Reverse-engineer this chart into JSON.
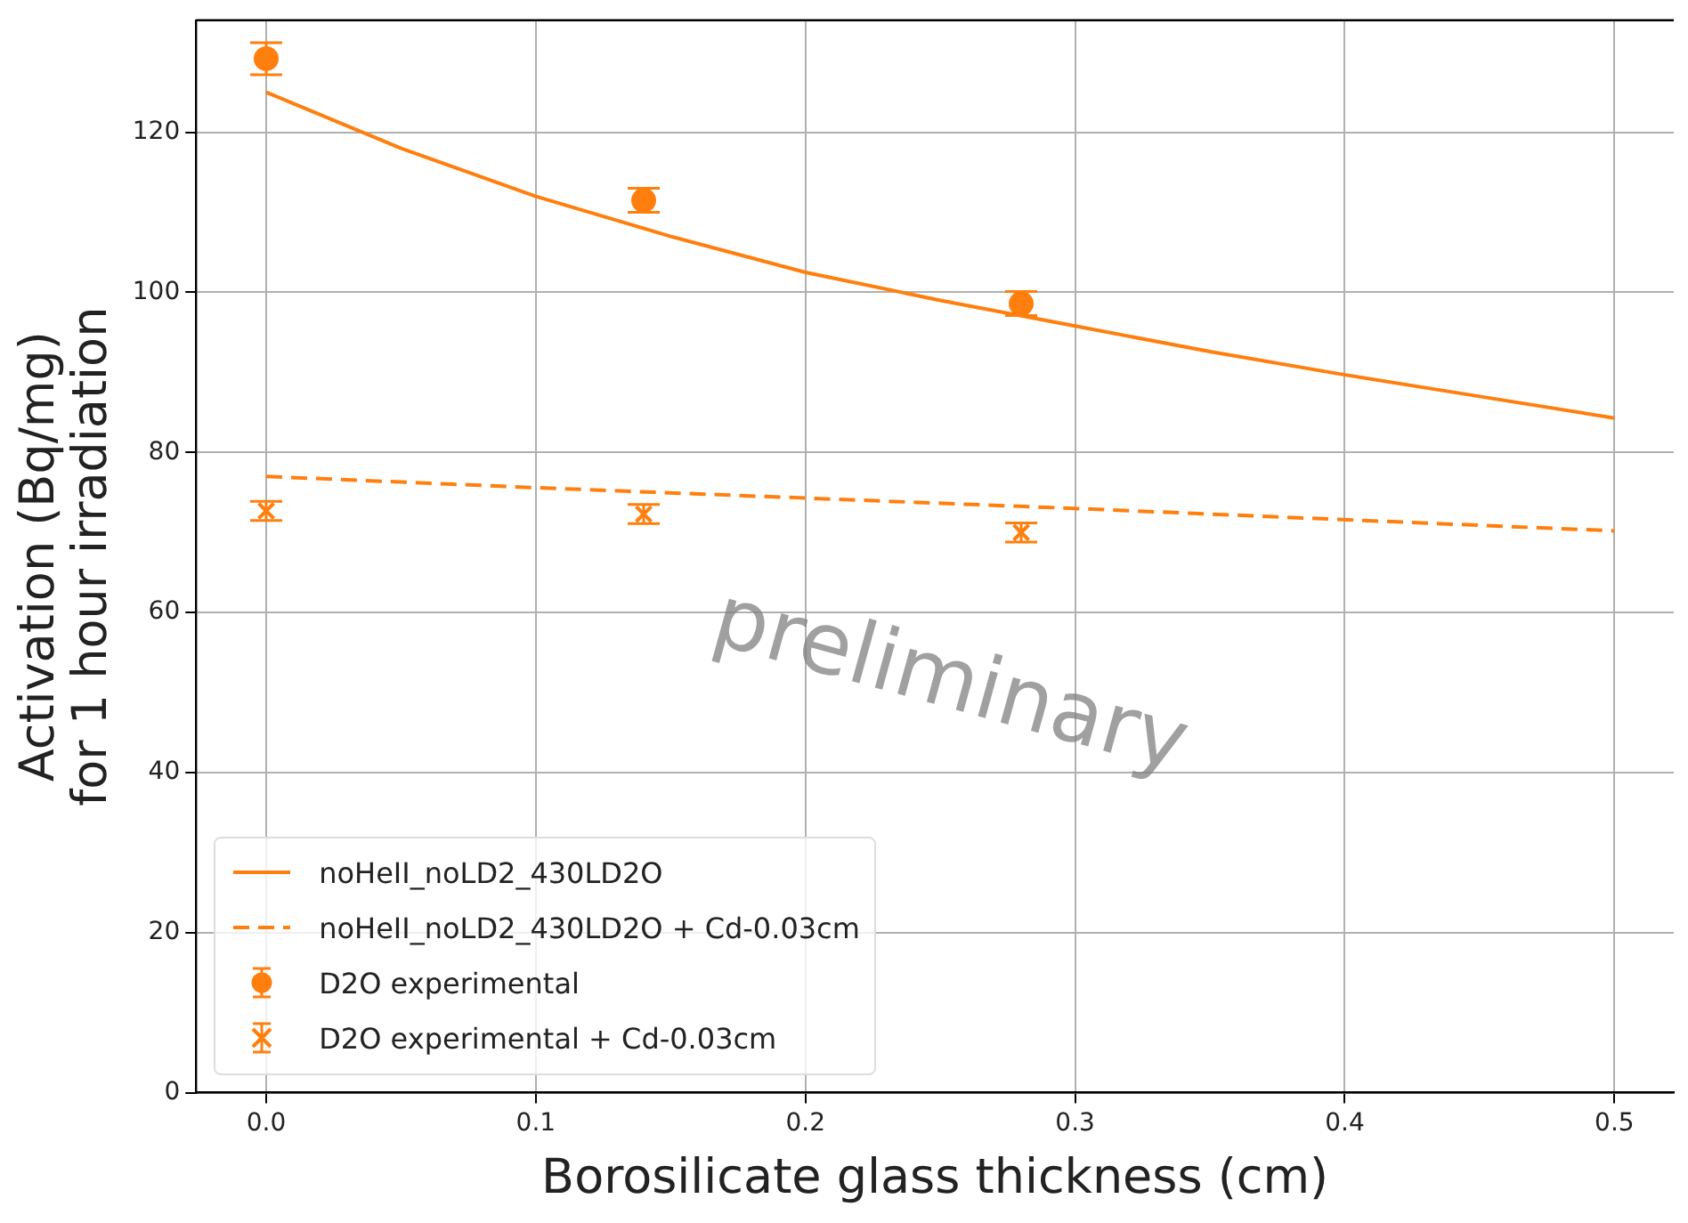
{
  "chart_data": {
    "type": "scatter",
    "xlabel": "Borosilicate glass thickness (cm)",
    "ylabel": "Activation (Bq/mg)\nfor 1 hour irradiation",
    "xlim": [
      -0.026,
      0.522
    ],
    "ylim": [
      0,
      134
    ],
    "xticks": [
      {
        "value": 0,
        "label": "0.0"
      },
      0.1,
      0.2,
      0.3,
      0.4,
      0.5
    ],
    "yticks": [
      0,
      20,
      40,
      60,
      80,
      100,
      120
    ],
    "grid": true,
    "legend": "bottom left",
    "annotations": [
      "preliminary"
    ],
    "series": [
      {
        "name": "noHeII_noLD2_430LD2O",
        "type": "line",
        "line_style": "solid",
        "marker": "none",
        "color": "#ff7f0e",
        "x": [
          0,
          0.05,
          0.1,
          0.15,
          0.2,
          0.25,
          0.3,
          0.35,
          0.4,
          0.45,
          0.5
        ],
        "values": [
          125,
          118,
          112,
          107,
          102.5,
          99,
          95.8,
          92.6,
          89.7,
          87,
          84.3
        ]
      },
      {
        "name": "noHeII_noLD2_430LD2O + Cd-0.03cm",
        "type": "line",
        "line_style": "dashed",
        "marker": "none",
        "color": "#ff7f0e",
        "x": [
          0,
          0.1,
          0.2,
          0.3,
          0.4,
          0.5
        ],
        "values": [
          77,
          75.6,
          74.3,
          73,
          71.6,
          70.2
        ]
      },
      {
        "name": "D2O experimental",
        "marker": "circle",
        "color": "#ff7f0e",
        "x": [
          0,
          0.14,
          0.28
        ],
        "values": [
          129.2,
          111.5,
          98.6
        ],
        "errors": [
          2,
          1.5,
          1.5
        ]
      },
      {
        "name": "D2O experimental + Cd-0.03cm",
        "marker": "cross",
        "color": "#ff7f0e",
        "x": [
          0,
          0.14,
          0.28
        ],
        "values": [
          72.7,
          72.3,
          70
        ],
        "errors": [
          1.2,
          1.2,
          1.2
        ]
      }
    ]
  }
}
